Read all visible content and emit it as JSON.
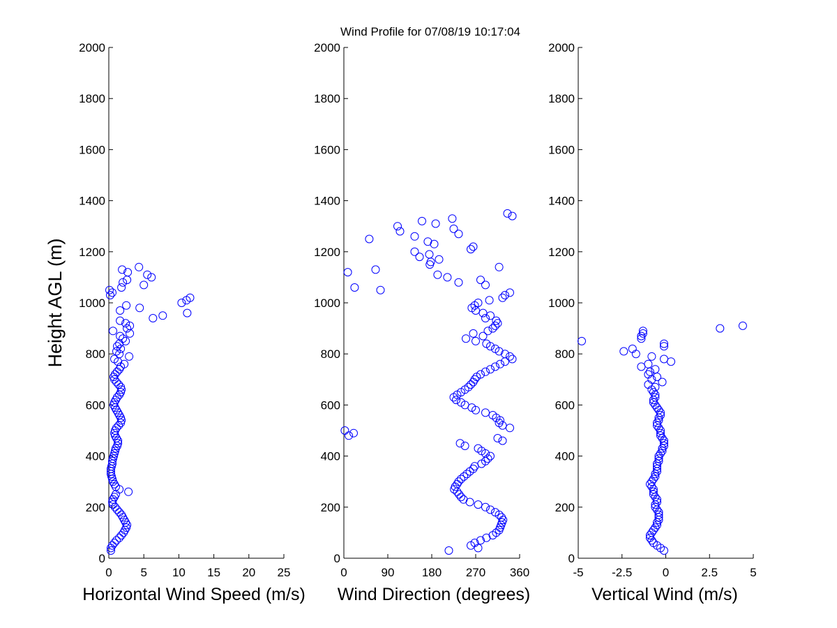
{
  "title": "Wind Profile for  07/08/19 10:17:04",
  "chart_data": [
    {
      "type": "scatter",
      "name": "horizontal-wind-speed",
      "xlabel": "Horizontal Wind Speed (m/s)",
      "ylabel": "Height AGL (m)",
      "xlim": [
        0,
        25
      ],
      "ylim": [
        0,
        2000
      ],
      "xticks": [
        0,
        5,
        10,
        15,
        20,
        25
      ],
      "xtick_labels": [
        "0",
        "5",
        "10",
        "15",
        "20",
        "25"
      ],
      "yticks": [
        0,
        200,
        400,
        600,
        800,
        1000,
        1200,
        1400,
        1600,
        1800,
        2000
      ],
      "ytick_labels": [
        "0",
        "200",
        "400",
        "600",
        "800",
        "1000",
        "1200",
        "1400",
        "1600",
        "1800",
        "2000"
      ],
      "marker_color": "#0000ff",
      "x": [
        0.3,
        0.3,
        0.5,
        0.8,
        1.1,
        1.5,
        1.8,
        2.1,
        2.3,
        2.5,
        2.6,
        2.4,
        2.2,
        2.0,
        1.8,
        1.5,
        1.2,
        0.9,
        0.6,
        0.5,
        0.6,
        0.8,
        1.0,
        2.8,
        1.5,
        1.0,
        0.8,
        0.6,
        0.5,
        0.4,
        0.3,
        0.3,
        0.3,
        0.4,
        0.5,
        0.5,
        0.6,
        0.7,
        0.8,
        0.9,
        1.0,
        1.2,
        1.3,
        1.3,
        1.1,
        0.9,
        0.8,
        0.9,
        1.1,
        1.4,
        1.7,
        1.8,
        1.7,
        1.5,
        1.3,
        1.1,
        0.9,
        0.7,
        0.8,
        1.0,
        1.2,
        1.5,
        1.7,
        1.8,
        1.7,
        1.4,
        1.1,
        0.8,
        0.7,
        0.9,
        1.2,
        1.5,
        1.7,
        2.2,
        1.3,
        0.8,
        2.9,
        1.5,
        1.1,
        1.7,
        1.2,
        1.5,
        2.4,
        2.0,
        1.6,
        3.0,
        0.6,
        2.6,
        3.0,
        2.4,
        1.6,
        6.3,
        7.7,
        11.2,
        1.6,
        4.4,
        2.5,
        10.4,
        11.1,
        11.6,
        0.2,
        0.5,
        0.1,
        1.8,
        5.0,
        2.0,
        2.6,
        6.1,
        5.5,
        2.7,
        1.9,
        4.3
      ]
    },
    {
      "type": "scatter",
      "name": "wind-direction",
      "xlabel": "Wind Direction (degrees)",
      "ylabel": "",
      "xlim": [
        0,
        360
      ],
      "ylim": [
        0,
        2000
      ],
      "xticks": [
        0,
        90,
        180,
        270,
        360
      ],
      "xtick_labels": [
        "0",
        "90",
        "180",
        "270",
        "360"
      ],
      "yticks": [
        0,
        200,
        400,
        600,
        800,
        1000,
        1200,
        1400,
        1600,
        1800,
        2000
      ],
      "ytick_labels": [
        "0",
        "200",
        "400",
        "600",
        "800",
        "1000",
        "1200",
        "1400",
        "1600",
        "1800",
        "2000"
      ],
      "marker_color": "#0000ff",
      "x": [
        215,
        275,
        260,
        268,
        280,
        292,
        305,
        312,
        318,
        320,
        322,
        324,
        326,
        323,
        318,
        310,
        300,
        290,
        275,
        258,
        245,
        240,
        236,
        232,
        226,
        228,
        232,
        235,
        240,
        246,
        252,
        258,
        265,
        268,
        282,
        290,
        295,
        300,
        290,
        282,
        275,
        248,
        238,
        325,
        315,
        10,
        20,
        2,
        340,
        325,
        318,
        320,
        312,
        305,
        290,
        270,
        262,
        248,
        240,
        230,
        225,
        232,
        240,
        248,
        255,
        260,
        265,
        268,
        272,
        280,
        290,
        300,
        310,
        320,
        330,
        345,
        340,
        330,
        318,
        310,
        300,
        292,
        270,
        250,
        285,
        265,
        295,
        305,
        310,
        315,
        312,
        290,
        300,
        285,
        270,
        262,
        268,
        275,
        298,
        325,
        330,
        340,
        75,
        22,
        290,
        235,
        280,
        212,
        192,
        8,
        65,
        318,
        176,
        178,
        195,
        155,
        175,
        145,
        260,
        265,
        185,
        172,
        52,
        145,
        235,
        115,
        225,
        110,
        188,
        160,
        222,
        345,
        335
      ]
    },
    {
      "type": "scatter",
      "name": "vertical-wind",
      "xlabel": "Vertical Wind (m/s)",
      "ylabel": "",
      "xlim": [
        -5,
        5
      ],
      "ylim": [
        0,
        2000
      ],
      "xticks": [
        -5,
        -2.5,
        0,
        2.5,
        5
      ],
      "xtick_labels": [
        "-5",
        "-2.5",
        "0",
        "2.5",
        "5"
      ],
      "yticks": [
        0,
        200,
        400,
        600,
        800,
        1000,
        1200,
        1400,
        1600,
        1800,
        2000
      ],
      "ytick_labels": [
        "0",
        "200",
        "400",
        "600",
        "800",
        "1000",
        "1200",
        "1400",
        "1600",
        "1800",
        "2000"
      ],
      "marker_color": "#0000ff",
      "x": [
        -0.1,
        -0.3,
        -0.5,
        -0.7,
        -0.8,
        -0.9,
        -0.9,
        -0.8,
        -0.7,
        -0.6,
        -0.5,
        -0.5,
        -0.4,
        -0.4,
        -0.4,
        -0.4,
        -0.5,
        -0.6,
        -0.6,
        -0.5,
        -0.5,
        -0.6,
        -0.7,
        -0.7,
        -0.7,
        -0.8,
        -0.9,
        -0.8,
        -0.7,
        -0.6,
        -0.6,
        -0.5,
        -0.5,
        -0.5,
        -0.5,
        -0.4,
        -0.4,
        -0.4,
        -0.3,
        -0.2,
        -0.2,
        -0.1,
        -0.1,
        -0.1,
        -0.2,
        -0.3,
        -0.3,
        -0.3,
        -0.4,
        -0.5,
        -0.5,
        -0.4,
        -0.4,
        -0.3,
        -0.3,
        -0.4,
        -0.5,
        -0.6,
        -0.7,
        -0.7,
        -0.6,
        -0.6,
        -0.7,
        -0.8,
        -0.6,
        -1.0,
        -0.2,
        -0.8,
        -0.5,
        -1.0,
        -0.9,
        -0.6,
        -1.4,
        -1.0,
        0.3,
        -0.1,
        -0.8,
        -1.7,
        -2.4,
        -1.9,
        -0.1,
        -0.1,
        -4.8,
        -1.4,
        -1.4,
        -1.3,
        -1.3,
        3.1,
        4.4
      ]
    }
  ]
}
